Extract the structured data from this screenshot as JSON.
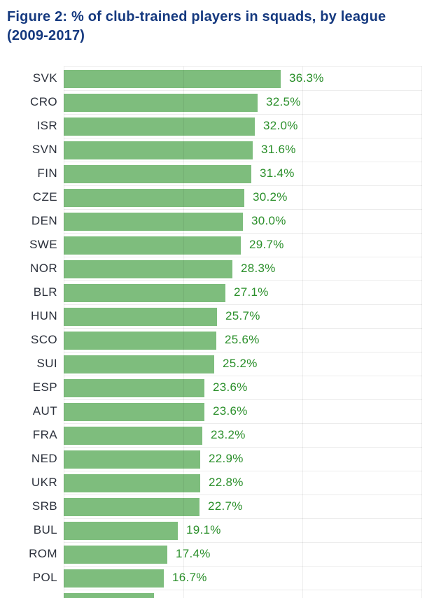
{
  "title": {
    "line1": "Figure 2: % of club-trained players in squads, by league",
    "line2": "(2009-2017)"
  },
  "chart_data": {
    "type": "bar",
    "orientation": "horizontal",
    "title": "Figure 2: % of club-trained players in squads, by league (2009-2017)",
    "xlabel": "",
    "ylabel": "",
    "xlim": [
      0,
      60
    ],
    "gridlines_pct": [
      0,
      20,
      40,
      60
    ],
    "grid": true,
    "legend": false,
    "categories": [
      "SVK",
      "CRO",
      "ISR",
      "SVN",
      "FIN",
      "CZE",
      "DEN",
      "SWE",
      "NOR",
      "BLR",
      "HUN",
      "SCO",
      "SUI",
      "ESP",
      "AUT",
      "FRA",
      "NED",
      "UKR",
      "SRB",
      "BUL",
      "ROM",
      "POL"
    ],
    "values": [
      36.3,
      32.5,
      32.0,
      31.6,
      31.4,
      30.2,
      30.0,
      29.7,
      28.3,
      27.1,
      25.7,
      25.6,
      25.2,
      23.6,
      23.6,
      23.2,
      22.9,
      22.8,
      22.7,
      19.1,
      17.4,
      16.7
    ],
    "value_labels": [
      "36.3%",
      "32.5%",
      "32.0%",
      "31.6%",
      "31.4%",
      "30.2%",
      "30.0%",
      "29.7%",
      "28.3%",
      "27.1%",
      "25.7%",
      "25.6%",
      "25.2%",
      "23.6%",
      "23.6%",
      "23.2%",
      "22.9%",
      "22.8%",
      "22.7%",
      "19.1%",
      "17.4%",
      "16.7%"
    ],
    "partial_bottom_row": {
      "label": "",
      "value": 15.1,
      "value_label": ""
    }
  },
  "colors": {
    "title": "#15397f",
    "category_label": "#2b303b",
    "value_label": "#2a8f2a",
    "bar": "#7ebd7d",
    "gridline": "#ececec"
  }
}
